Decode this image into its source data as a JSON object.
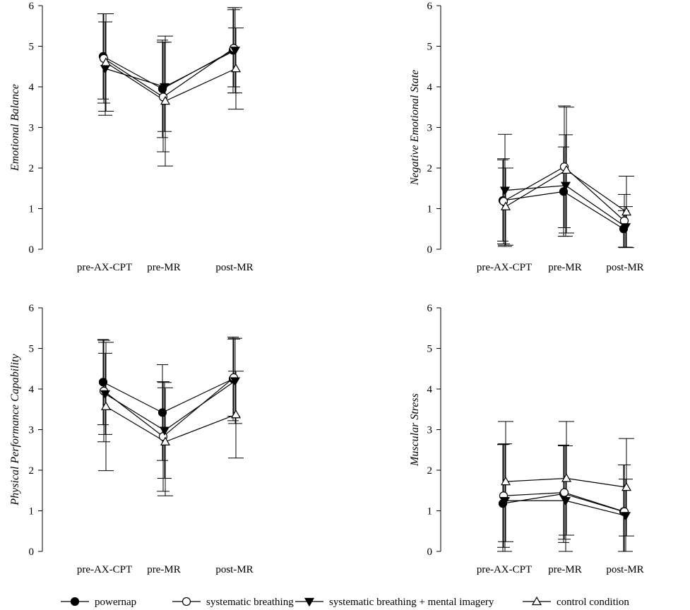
{
  "legend": [
    {
      "key": "powernap",
      "label": "powernap",
      "marker": "filled-circle"
    },
    {
      "key": "breathing",
      "label": "systematic breathing",
      "marker": "open-circle"
    },
    {
      "key": "imagery",
      "label": "systematic breathing + mental imagery",
      "marker": "filled-triangle-down"
    },
    {
      "key": "control",
      "label": "control condition",
      "marker": "open-triangle-up"
    }
  ],
  "chart_data": [
    {
      "type": "line",
      "id": "emotional-balance",
      "ylabel": "Emotional Balance",
      "ylim": [
        0,
        6
      ],
      "yticks": [
        0,
        1,
        2,
        3,
        4,
        5,
        6
      ],
      "categories": [
        "pre-AX-CPT",
        "pre-MR",
        "post-MR"
      ],
      "series": [
        {
          "name": "powernap",
          "values": [
            4.75,
            3.95,
            4.9
          ],
          "sd": [
            1.05,
            1.2,
            1.05
          ]
        },
        {
          "name": "systematic breathing",
          "values": [
            4.7,
            3.75,
            4.95
          ],
          "sd": [
            1.1,
            1.35,
            0.95
          ]
        },
        {
          "name": "systematic breathing + mental imagery",
          "values": [
            4.45,
            4.0,
            4.9
          ],
          "sd": [
            1.15,
            1.1,
            1.05
          ]
        },
        {
          "name": "control condition",
          "values": [
            4.6,
            3.65,
            4.45
          ],
          "sd": [
            1.2,
            1.6,
            1.0
          ]
        }
      ]
    },
    {
      "type": "line",
      "id": "negative-emotional-state",
      "ylabel": "Negative Emotional State",
      "ylim": [
        0,
        6
      ],
      "yticks": [
        0,
        1,
        2,
        3,
        4,
        5,
        6
      ],
      "categories": [
        "pre-AX-CPT",
        "pre-MR",
        "post-MR"
      ],
      "series": [
        {
          "name": "powernap",
          "values": [
            1.2,
            1.42,
            0.5
          ],
          "sd": [
            1.0,
            1.1,
            0.45
          ]
        },
        {
          "name": "systematic breathing",
          "values": [
            1.18,
            2.03,
            0.7
          ],
          "sd": [
            1.05,
            1.5,
            0.65
          ]
        },
        {
          "name": "systematic breathing + mental imagery",
          "values": [
            1.45,
            1.57,
            0.55
          ],
          "sd": [
            1.38,
            1.25,
            0.5
          ]
        },
        {
          "name": "control condition",
          "values": [
            1.05,
            1.95,
            0.92
          ],
          "sd": [
            0.95,
            1.55,
            0.88
          ]
        }
      ]
    },
    {
      "type": "line",
      "id": "physical-performance-capability",
      "ylabel": "Physical Performance Capability",
      "ylim": [
        0,
        6
      ],
      "yticks": [
        0,
        1,
        2,
        3,
        4,
        5,
        6
      ],
      "categories": [
        "pre-AX-CPT",
        "pre-MR",
        "post-MR"
      ],
      "series": [
        {
          "name": "powernap",
          "values": [
            4.17,
            3.42,
            4.25
          ],
          "sd": [
            1.05,
            1.18,
            1.03
          ]
        },
        {
          "name": "systematic breathing",
          "values": [
            3.95,
            2.83,
            4.28
          ],
          "sd": [
            1.25,
            1.35,
            0.95
          ]
        },
        {
          "name": "systematic breathing + mental imagery",
          "values": [
            3.88,
            2.98,
            4.2
          ],
          "sd": [
            1.0,
            1.18,
            1.05
          ]
        },
        {
          "name": "control condition",
          "values": [
            3.57,
            2.7,
            3.37
          ],
          "sd": [
            1.58,
            1.33,
            1.07
          ]
        }
      ]
    },
    {
      "type": "line",
      "id": "muscular-stress",
      "ylabel": "Muscular Stress",
      "ylim": [
        0,
        6
      ],
      "yticks": [
        0,
        1,
        2,
        3,
        4,
        5,
        6
      ],
      "categories": [
        "pre-AX-CPT",
        "pre-MR",
        "post-MR"
      ],
      "series": [
        {
          "name": "powernap",
          "values": [
            1.18,
            1.42,
            0.98
          ],
          "sd": [
            1.45,
            1.2,
            1.15
          ]
        },
        {
          "name": "systematic breathing",
          "values": [
            1.37,
            1.45,
            0.98
          ],
          "sd": [
            1.27,
            1.15,
            1.15
          ]
        },
        {
          "name": "systematic breathing + mental imagery",
          "values": [
            1.25,
            1.25,
            0.88
          ],
          "sd": [
            1.4,
            1.35,
            0.9
          ]
        },
        {
          "name": "control condition",
          "values": [
            1.72,
            1.8,
            1.58
          ],
          "sd": [
            1.48,
            1.4,
            1.2
          ]
        }
      ]
    }
  ]
}
